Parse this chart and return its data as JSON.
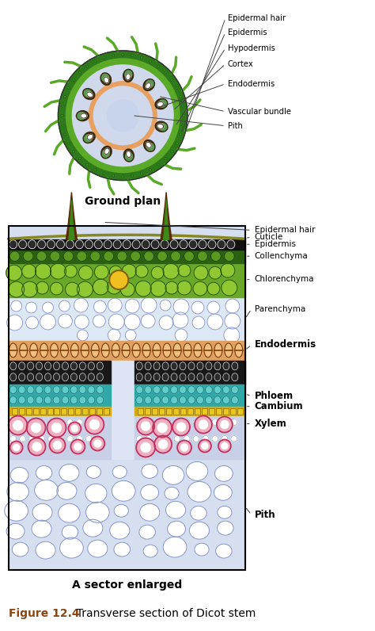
{
  "title_orange": "Figure 12.4",
  "title_black": "  Transverse section of Dicot stem",
  "title_color": "#8B4513",
  "ground_plan_label": "Ground plan",
  "sector_label": "A sector enlarged",
  "top_labels": [
    "Epidermal hair",
    "Epidermis",
    "Hypodermis",
    "Cortex",
    "Endodermis",
    "Vascular bundle",
    "Pith"
  ],
  "bottom_labels": [
    "Epidermal hair",
    "Cuticle",
    "Epidermis",
    "Collenchyma",
    "Chlorenchyma",
    "Parenchyma",
    "Endodermis",
    "Phloem",
    "Cambium",
    "Xylem",
    "Pith"
  ],
  "bg_color": "#FFFFFF",
  "lavender": "#D0D8EC",
  "light_lavender": "#DDE5F0",
  "green_epi": "#2D7A1A",
  "green_hypo": "#5AAA28",
  "green_chlor": "#88BB30",
  "green_coll": "#4A8820",
  "orange_endo": "#E8A060",
  "teal_phloem": "#40B0B0",
  "yellow_cambium": "#D4B020",
  "pink_xylem": "#E890A8",
  "dark_vb": "#1A1A1A",
  "pith_bg": "#D5DFF0",
  "parench_bg": "#DDE8F5"
}
